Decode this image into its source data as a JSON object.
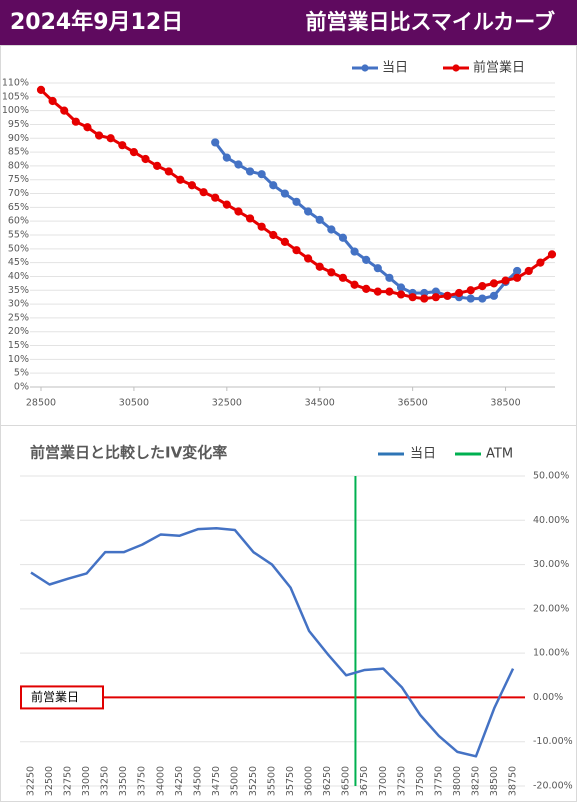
{
  "header": {
    "date": "2024年9月12日",
    "title": "前営業日比スマイルカーブ"
  },
  "chart_data": [
    {
      "type": "line",
      "x": [
        28500,
        28750,
        29000,
        29250,
        29500,
        29750,
        30000,
        30250,
        30500,
        30750,
        31000,
        31250,
        31500,
        31750,
        32000,
        32250,
        32500,
        32750,
        33000,
        33250,
        33500,
        33750,
        34000,
        34250,
        34500,
        34750,
        35000,
        35250,
        35500,
        35750,
        36000,
        36250,
        36500,
        36750,
        37000,
        37250,
        37500,
        37750,
        38000,
        38250,
        38500,
        38750,
        39000,
        39250,
        39500
      ],
      "series": [
        {
          "name": "当日",
          "color": "#4472c4",
          "values": [
            null,
            null,
            null,
            null,
            null,
            null,
            null,
            null,
            null,
            null,
            null,
            null,
            null,
            null,
            null,
            88.5,
            83,
            80.5,
            78,
            77,
            73,
            70,
            67,
            63.5,
            60.5,
            57,
            54,
            49,
            46,
            43,
            39.5,
            36,
            34,
            34,
            34.5,
            33,
            32.5,
            32,
            32,
            33,
            38,
            42,
            null,
            null,
            null
          ]
        },
        {
          "name": "前営業日",
          "color": "#e60000",
          "values": [
            107.5,
            103.5,
            100,
            96,
            94,
            91,
            90,
            87.5,
            85,
            82.5,
            80,
            78,
            75,
            73,
            70.5,
            68.5,
            66,
            63.5,
            61,
            58,
            55,
            52.5,
            49.5,
            46.5,
            43.5,
            41.5,
            39.5,
            37,
            35.5,
            34.5,
            34.5,
            33.5,
            32.5,
            32,
            32.5,
            33,
            34,
            35,
            36.5,
            37.5,
            38.5,
            39.5,
            42,
            45,
            48
          ]
        }
      ],
      "xlim": [
        28500,
        39500
      ],
      "xticks": [
        28500,
        30500,
        32500,
        34500,
        36500,
        38500
      ],
      "ylim": [
        0,
        110
      ],
      "yticks": [
        {
          "value": 0,
          "label": "0%"
        },
        {
          "value": 5,
          "label": "5%"
        },
        {
          "value": 10,
          "label": "10%"
        },
        {
          "value": 15,
          "label": "15%"
        },
        {
          "value": 20,
          "label": "20%"
        },
        {
          "value": 25,
          "label": "25%"
        },
        {
          "value": 30,
          "label": "30%"
        },
        {
          "value": 35,
          "label": "35%"
        },
        {
          "value": 40,
          "label": "40%"
        },
        {
          "value": 45,
          "label": "45%"
        },
        {
          "value": 50,
          "label": "50%"
        },
        {
          "value": 55,
          "label": "55%"
        },
        {
          "value": 60,
          "label": "60%"
        },
        {
          "value": 65,
          "label": "65%"
        },
        {
          "value": 70,
          "label": "70%"
        },
        {
          "value": 75,
          "label": "75%"
        },
        {
          "value": 80,
          "label": "80%"
        },
        {
          "value": 85,
          "label": "85%"
        },
        {
          "value": 90,
          "label": "90%"
        },
        {
          "value": 95,
          "label": "95%"
        },
        {
          "value": 100,
          "label": "100%"
        },
        {
          "value": 105,
          "label": "105%"
        },
        {
          "value": 110,
          "label": "110%"
        }
      ],
      "grid": true,
      "markers": true,
      "legend": "top-right"
    },
    {
      "type": "line",
      "title": "前営業日と比較したIV変化率",
      "categories": [
        "32250",
        "32500",
        "32750",
        "33000",
        "33250",
        "33500",
        "33750",
        "34000",
        "34250",
        "34500",
        "34750",
        "35000",
        "35250",
        "35500",
        "35750",
        "36000",
        "36250",
        "36500",
        "36750",
        "37000",
        "37250",
        "37500",
        "37750",
        "38000",
        "38250",
        "38500",
        "38750"
      ],
      "series": [
        {
          "name": "当日",
          "color": "#4472c4",
          "values": [
            28.2,
            25.5,
            26.8,
            28,
            32.8,
            32.8,
            34.5,
            36.8,
            36.5,
            38,
            38.2,
            37.8,
            32.8,
            30,
            24.8,
            15,
            9.8,
            5,
            6.2,
            6.5,
            2.3,
            -4,
            -8.7,
            -12.3,
            -13.3,
            -2.3,
            6.5
          ]
        }
      ],
      "vlines": [
        {
          "name": "ATM",
          "color": "#00b050",
          "x": 36625
        }
      ],
      "hlines": [
        {
          "label": "前営業日",
          "color": "#e00000",
          "y": 0
        }
      ],
      "ylim": [
        -20,
        50
      ],
      "yticks": [
        {
          "value": -20,
          "label": "-20.00%"
        },
        {
          "value": -10,
          "label": "-10.00%"
        },
        {
          "value": 0,
          "label": "0.00%"
        },
        {
          "value": 10,
          "label": "10.00%"
        },
        {
          "value": 20,
          "label": "20.00%"
        },
        {
          "value": 30,
          "label": "30.00%"
        },
        {
          "value": 40,
          "label": "40.00%"
        },
        {
          "value": 50,
          "label": "50.00%"
        }
      ],
      "yaxis_side": "right",
      "grid": true,
      "legend": "top-right"
    }
  ]
}
